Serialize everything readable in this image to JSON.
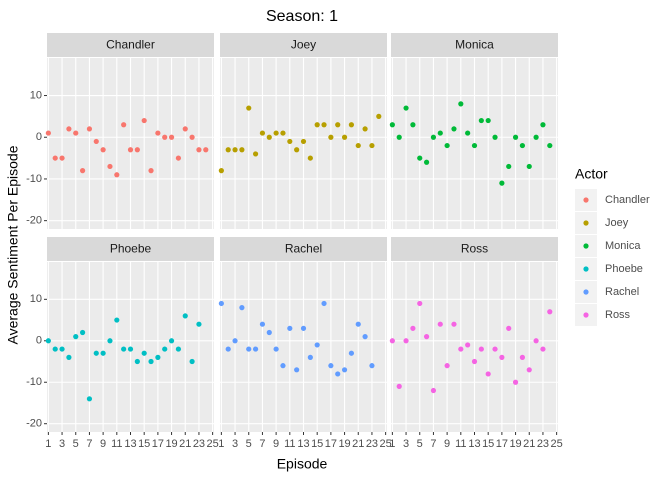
{
  "chart_data": {
    "type": "scatter",
    "title": "Season: 1",
    "x_label": "Episode",
    "y_label": "Average Sentiment Per Episode",
    "legend_title": "Actor",
    "x": [
      1,
      2,
      3,
      4,
      5,
      6,
      7,
      8,
      9,
      10,
      11,
      12,
      13,
      14,
      15,
      16,
      17,
      18,
      19,
      20,
      21,
      22,
      23,
      24,
      25
    ],
    "xlim": [
      0.8,
      25.2
    ],
    "xticks": [
      1,
      3,
      5,
      7,
      9,
      11,
      13,
      15,
      17,
      19,
      21,
      23,
      25
    ],
    "ylim": [
      -22,
      19
    ],
    "yticks": [
      -20,
      -10,
      0,
      10
    ],
    "grid": true,
    "series": [
      {
        "name": "Chandler",
        "color": "#F8766D",
        "values": [
          1,
          -5,
          -5,
          2,
          1,
          -8,
          2,
          -1,
          -3,
          -7,
          -9,
          3,
          -3,
          -3,
          4,
          -8,
          1,
          0,
          0,
          -5,
          2,
          0,
          -3,
          -3,
          null
        ]
      },
      {
        "name": "Joey",
        "color": "#B79F00",
        "values": [
          -8,
          -3,
          -3,
          -3,
          7,
          -4,
          1,
          0,
          1,
          1,
          -1,
          -3,
          -1,
          -5,
          3,
          3,
          0,
          3,
          0,
          3,
          -2,
          2,
          -2,
          5,
          null
        ]
      },
      {
        "name": "Monica",
        "color": "#00BA38",
        "values": [
          3,
          0,
          7,
          3,
          -5,
          -6,
          0,
          1,
          -2,
          2,
          8,
          1,
          -2,
          4,
          4,
          0,
          -11,
          -7,
          0,
          -2,
          -7,
          0,
          3,
          -2,
          null
        ]
      },
      {
        "name": "Phoebe",
        "color": "#00BFC4",
        "values": [
          0,
          -2,
          -2,
          -4,
          1,
          2,
          -14,
          -3,
          -3,
          0,
          5,
          -2,
          -2,
          -5,
          -3,
          -5,
          -4,
          -2,
          0,
          -2,
          6,
          -5,
          4,
          null,
          null
        ]
      },
      {
        "name": "Rachel",
        "color": "#619CFF",
        "values": [
          9,
          -2,
          0,
          8,
          -2,
          -2,
          4,
          2,
          -2,
          -6,
          3,
          -7,
          3,
          -4,
          -1,
          9,
          -6,
          -8,
          -7,
          -3,
          4,
          1,
          -6,
          null,
          null
        ]
      },
      {
        "name": "Ross",
        "color": "#F564E3",
        "values": [
          0,
          -11,
          0,
          3,
          9,
          1,
          -12,
          4,
          -6,
          4,
          -2,
          -1,
          -5,
          -2,
          -8,
          -2,
          -4,
          3,
          -10,
          -4,
          -7,
          0,
          -2,
          7,
          null
        ]
      }
    ]
  }
}
